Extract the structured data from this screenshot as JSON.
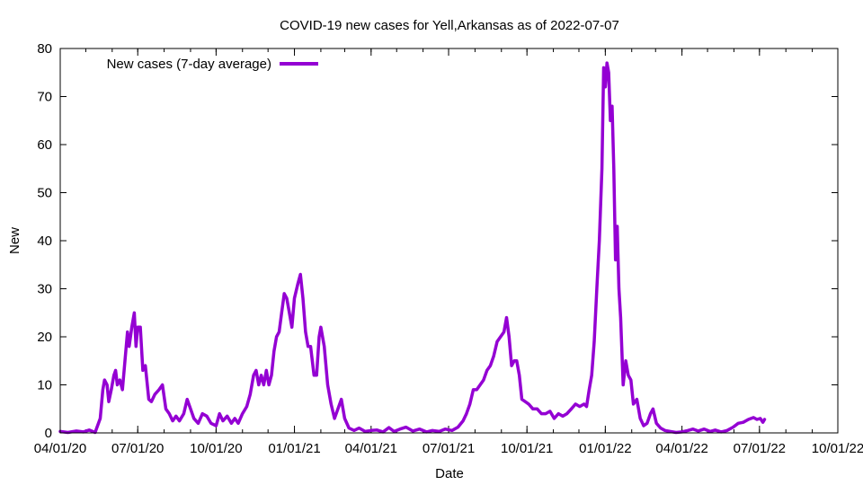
{
  "chart_data": {
    "type": "line",
    "title": "COVID-19 new cases for Yell,Arkansas as of 2022-07-07",
    "xlabel": "Date",
    "ylabel": "New",
    "x_axis": {
      "min": "2020-04-01",
      "max": "2022-10-01",
      "tick_dates": [
        "2020-04-01",
        "2020-07-01",
        "2020-10-01",
        "2021-01-01",
        "2021-04-01",
        "2021-07-01",
        "2021-10-01",
        "2022-01-01",
        "2022-04-01",
        "2022-07-01",
        "2022-10-01"
      ],
      "tick_labels": [
        "04/01/20",
        "07/01/20",
        "10/01/20",
        "01/01/21",
        "04/01/21",
        "07/01/21",
        "10/01/21",
        "01/01/22",
        "04/01/22",
        "07/01/22",
        "10/01/22"
      ]
    },
    "y_axis": {
      "min": 0,
      "max": 80,
      "ticks": [
        0,
        10,
        20,
        30,
        40,
        50,
        60,
        70,
        80
      ]
    },
    "grid": false,
    "legend_position": "top-left",
    "series": [
      {
        "name": "New cases (7-day average)",
        "color": "#9400d3",
        "points": [
          [
            "2020-04-01",
            0.3
          ],
          [
            "2020-04-10",
            0.1
          ],
          [
            "2020-04-20",
            0.4
          ],
          [
            "2020-04-28",
            0.2
          ],
          [
            "2020-05-05",
            0.6
          ],
          [
            "2020-05-12",
            0.1
          ],
          [
            "2020-05-18",
            3
          ],
          [
            "2020-05-21",
            9
          ],
          [
            "2020-05-23",
            11
          ],
          [
            "2020-05-26",
            10
          ],
          [
            "2020-05-28",
            6.5
          ],
          [
            "2020-05-31",
            9
          ],
          [
            "2020-06-03",
            12
          ],
          [
            "2020-06-05",
            13
          ],
          [
            "2020-06-07",
            10
          ],
          [
            "2020-06-10",
            11
          ],
          [
            "2020-06-13",
            9
          ],
          [
            "2020-06-16",
            15
          ],
          [
            "2020-06-19",
            21
          ],
          [
            "2020-06-21",
            18
          ],
          [
            "2020-06-24",
            22
          ],
          [
            "2020-06-27",
            25
          ],
          [
            "2020-06-29",
            18
          ],
          [
            "2020-07-01",
            22
          ],
          [
            "2020-07-04",
            22
          ],
          [
            "2020-07-07",
            13
          ],
          [
            "2020-07-10",
            14
          ],
          [
            "2020-07-14",
            7
          ],
          [
            "2020-07-17",
            6.5
          ],
          [
            "2020-07-21",
            8
          ],
          [
            "2020-07-26",
            9
          ],
          [
            "2020-07-30",
            10
          ],
          [
            "2020-08-03",
            5
          ],
          [
            "2020-08-07",
            4
          ],
          [
            "2020-08-11",
            2.5
          ],
          [
            "2020-08-15",
            3.5
          ],
          [
            "2020-08-19",
            2.5
          ],
          [
            "2020-08-24",
            4
          ],
          [
            "2020-08-28",
            7
          ],
          [
            "2020-09-01",
            5
          ],
          [
            "2020-09-05",
            3
          ],
          [
            "2020-09-10",
            2
          ],
          [
            "2020-09-15",
            4
          ],
          [
            "2020-09-20",
            3.5
          ],
          [
            "2020-09-25",
            2
          ],
          [
            "2020-10-01",
            1.5
          ],
          [
            "2020-10-05",
            4
          ],
          [
            "2020-10-09",
            2.5
          ],
          [
            "2020-10-14",
            3.5
          ],
          [
            "2020-10-19",
            2
          ],
          [
            "2020-10-23",
            3
          ],
          [
            "2020-10-27",
            2
          ],
          [
            "2020-11-01",
            4
          ],
          [
            "2020-11-06",
            5.5
          ],
          [
            "2020-11-10",
            8
          ],
          [
            "2020-11-14",
            12
          ],
          [
            "2020-11-17",
            13
          ],
          [
            "2020-11-20",
            10
          ],
          [
            "2020-11-23",
            12
          ],
          [
            "2020-11-26",
            10
          ],
          [
            "2020-11-29",
            13
          ],
          [
            "2020-12-02",
            10
          ],
          [
            "2020-12-05",
            12
          ],
          [
            "2020-12-08",
            17
          ],
          [
            "2020-12-11",
            20
          ],
          [
            "2020-12-14",
            21
          ],
          [
            "2020-12-17",
            25
          ],
          [
            "2020-12-20",
            29
          ],
          [
            "2020-12-23",
            28
          ],
          [
            "2020-12-26",
            25
          ],
          [
            "2020-12-29",
            22
          ],
          [
            "2021-01-01",
            28
          ],
          [
            "2021-01-05",
            31
          ],
          [
            "2021-01-08",
            33
          ],
          [
            "2021-01-11",
            28
          ],
          [
            "2021-01-14",
            21
          ],
          [
            "2021-01-17",
            18
          ],
          [
            "2021-01-20",
            18
          ],
          [
            "2021-01-24",
            12
          ],
          [
            "2021-01-27",
            12
          ],
          [
            "2021-01-30",
            20
          ],
          [
            "2021-02-01",
            22
          ],
          [
            "2021-02-05",
            18
          ],
          [
            "2021-02-09",
            10
          ],
          [
            "2021-02-13",
            6
          ],
          [
            "2021-02-17",
            3
          ],
          [
            "2021-02-21",
            5
          ],
          [
            "2021-02-25",
            7
          ],
          [
            "2021-03-01",
            3
          ],
          [
            "2021-03-06",
            1
          ],
          [
            "2021-03-12",
            0.5
          ],
          [
            "2021-03-18",
            1
          ],
          [
            "2021-03-25",
            0.3
          ],
          [
            "2021-04-01",
            0.5
          ],
          [
            "2021-04-08",
            0.6
          ],
          [
            "2021-04-15",
            0.2
          ],
          [
            "2021-04-22",
            1.1
          ],
          [
            "2021-04-28",
            0.3
          ],
          [
            "2021-05-05",
            0.8
          ],
          [
            "2021-05-12",
            1.2
          ],
          [
            "2021-05-20",
            0.4
          ],
          [
            "2021-05-28",
            0.8
          ],
          [
            "2021-06-05",
            0.2
          ],
          [
            "2021-06-12",
            0.5
          ],
          [
            "2021-06-20",
            0.3
          ],
          [
            "2021-06-27",
            0.8
          ],
          [
            "2021-07-05",
            0.5
          ],
          [
            "2021-07-12",
            1.2
          ],
          [
            "2021-07-18",
            2.5
          ],
          [
            "2021-07-22",
            4
          ],
          [
            "2021-07-26",
            6
          ],
          [
            "2021-07-30",
            9
          ],
          [
            "2021-08-03",
            9
          ],
          [
            "2021-08-07",
            10
          ],
          [
            "2021-08-11",
            11
          ],
          [
            "2021-08-15",
            13
          ],
          [
            "2021-08-19",
            14
          ],
          [
            "2021-08-23",
            16
          ],
          [
            "2021-08-27",
            19
          ],
          [
            "2021-08-31",
            20
          ],
          [
            "2021-09-04",
            21
          ],
          [
            "2021-09-07",
            24
          ],
          [
            "2021-09-10",
            20
          ],
          [
            "2021-09-13",
            14
          ],
          [
            "2021-09-16",
            15
          ],
          [
            "2021-09-19",
            15
          ],
          [
            "2021-09-22",
            12
          ],
          [
            "2021-09-25",
            7
          ],
          [
            "2021-09-29",
            6.5
          ],
          [
            "2021-10-03",
            6
          ],
          [
            "2021-10-08",
            5
          ],
          [
            "2021-10-13",
            5
          ],
          [
            "2021-10-18",
            4
          ],
          [
            "2021-10-23",
            4
          ],
          [
            "2021-10-28",
            4.5
          ],
          [
            "2021-11-02",
            3
          ],
          [
            "2021-11-07",
            4
          ],
          [
            "2021-11-12",
            3.5
          ],
          [
            "2021-11-17",
            4
          ],
          [
            "2021-11-22",
            5
          ],
          [
            "2021-11-27",
            6
          ],
          [
            "2021-12-02",
            5.5
          ],
          [
            "2021-12-07",
            6
          ],
          [
            "2021-12-10",
            5.5
          ],
          [
            "2021-12-13",
            9
          ],
          [
            "2021-12-16",
            12
          ],
          [
            "2021-12-19",
            19
          ],
          [
            "2021-12-22",
            30
          ],
          [
            "2021-12-25",
            40
          ],
          [
            "2021-12-28",
            55
          ],
          [
            "2021-12-30",
            76
          ],
          [
            "2022-01-01",
            72
          ],
          [
            "2022-01-03",
            77
          ],
          [
            "2022-01-05",
            75
          ],
          [
            "2022-01-07",
            65
          ],
          [
            "2022-01-09",
            68
          ],
          [
            "2022-01-11",
            55
          ],
          [
            "2022-01-13",
            36
          ],
          [
            "2022-01-15",
            43
          ],
          [
            "2022-01-17",
            30
          ],
          [
            "2022-01-19",
            24
          ],
          [
            "2022-01-22",
            10
          ],
          [
            "2022-01-25",
            15
          ],
          [
            "2022-01-28",
            12
          ],
          [
            "2022-01-31",
            11
          ],
          [
            "2022-02-03",
            6
          ],
          [
            "2022-02-07",
            7
          ],
          [
            "2022-02-11",
            3
          ],
          [
            "2022-02-15",
            1.5
          ],
          [
            "2022-02-19",
            2
          ],
          [
            "2022-02-23",
            4
          ],
          [
            "2022-02-26",
            5
          ],
          [
            "2022-03-02",
            2
          ],
          [
            "2022-03-07",
            1
          ],
          [
            "2022-03-12",
            0.5
          ],
          [
            "2022-03-18",
            0.3
          ],
          [
            "2022-03-25",
            0.1
          ],
          [
            "2022-04-01",
            0.2
          ],
          [
            "2022-04-08",
            0.5
          ],
          [
            "2022-04-14",
            0.8
          ],
          [
            "2022-04-20",
            0.4
          ],
          [
            "2022-04-27",
            0.8
          ],
          [
            "2022-05-04",
            0.3
          ],
          [
            "2022-05-10",
            0.6
          ],
          [
            "2022-05-17",
            0.2
          ],
          [
            "2022-05-24",
            0.5
          ],
          [
            "2022-05-31",
            1.2
          ],
          [
            "2022-06-06",
            2
          ],
          [
            "2022-06-12",
            2.2
          ],
          [
            "2022-06-18",
            2.8
          ],
          [
            "2022-06-24",
            3.2
          ],
          [
            "2022-06-28",
            2.8
          ],
          [
            "2022-07-02",
            3
          ],
          [
            "2022-07-05",
            2.2
          ],
          [
            "2022-07-07",
            2.8
          ]
        ]
      }
    ]
  }
}
